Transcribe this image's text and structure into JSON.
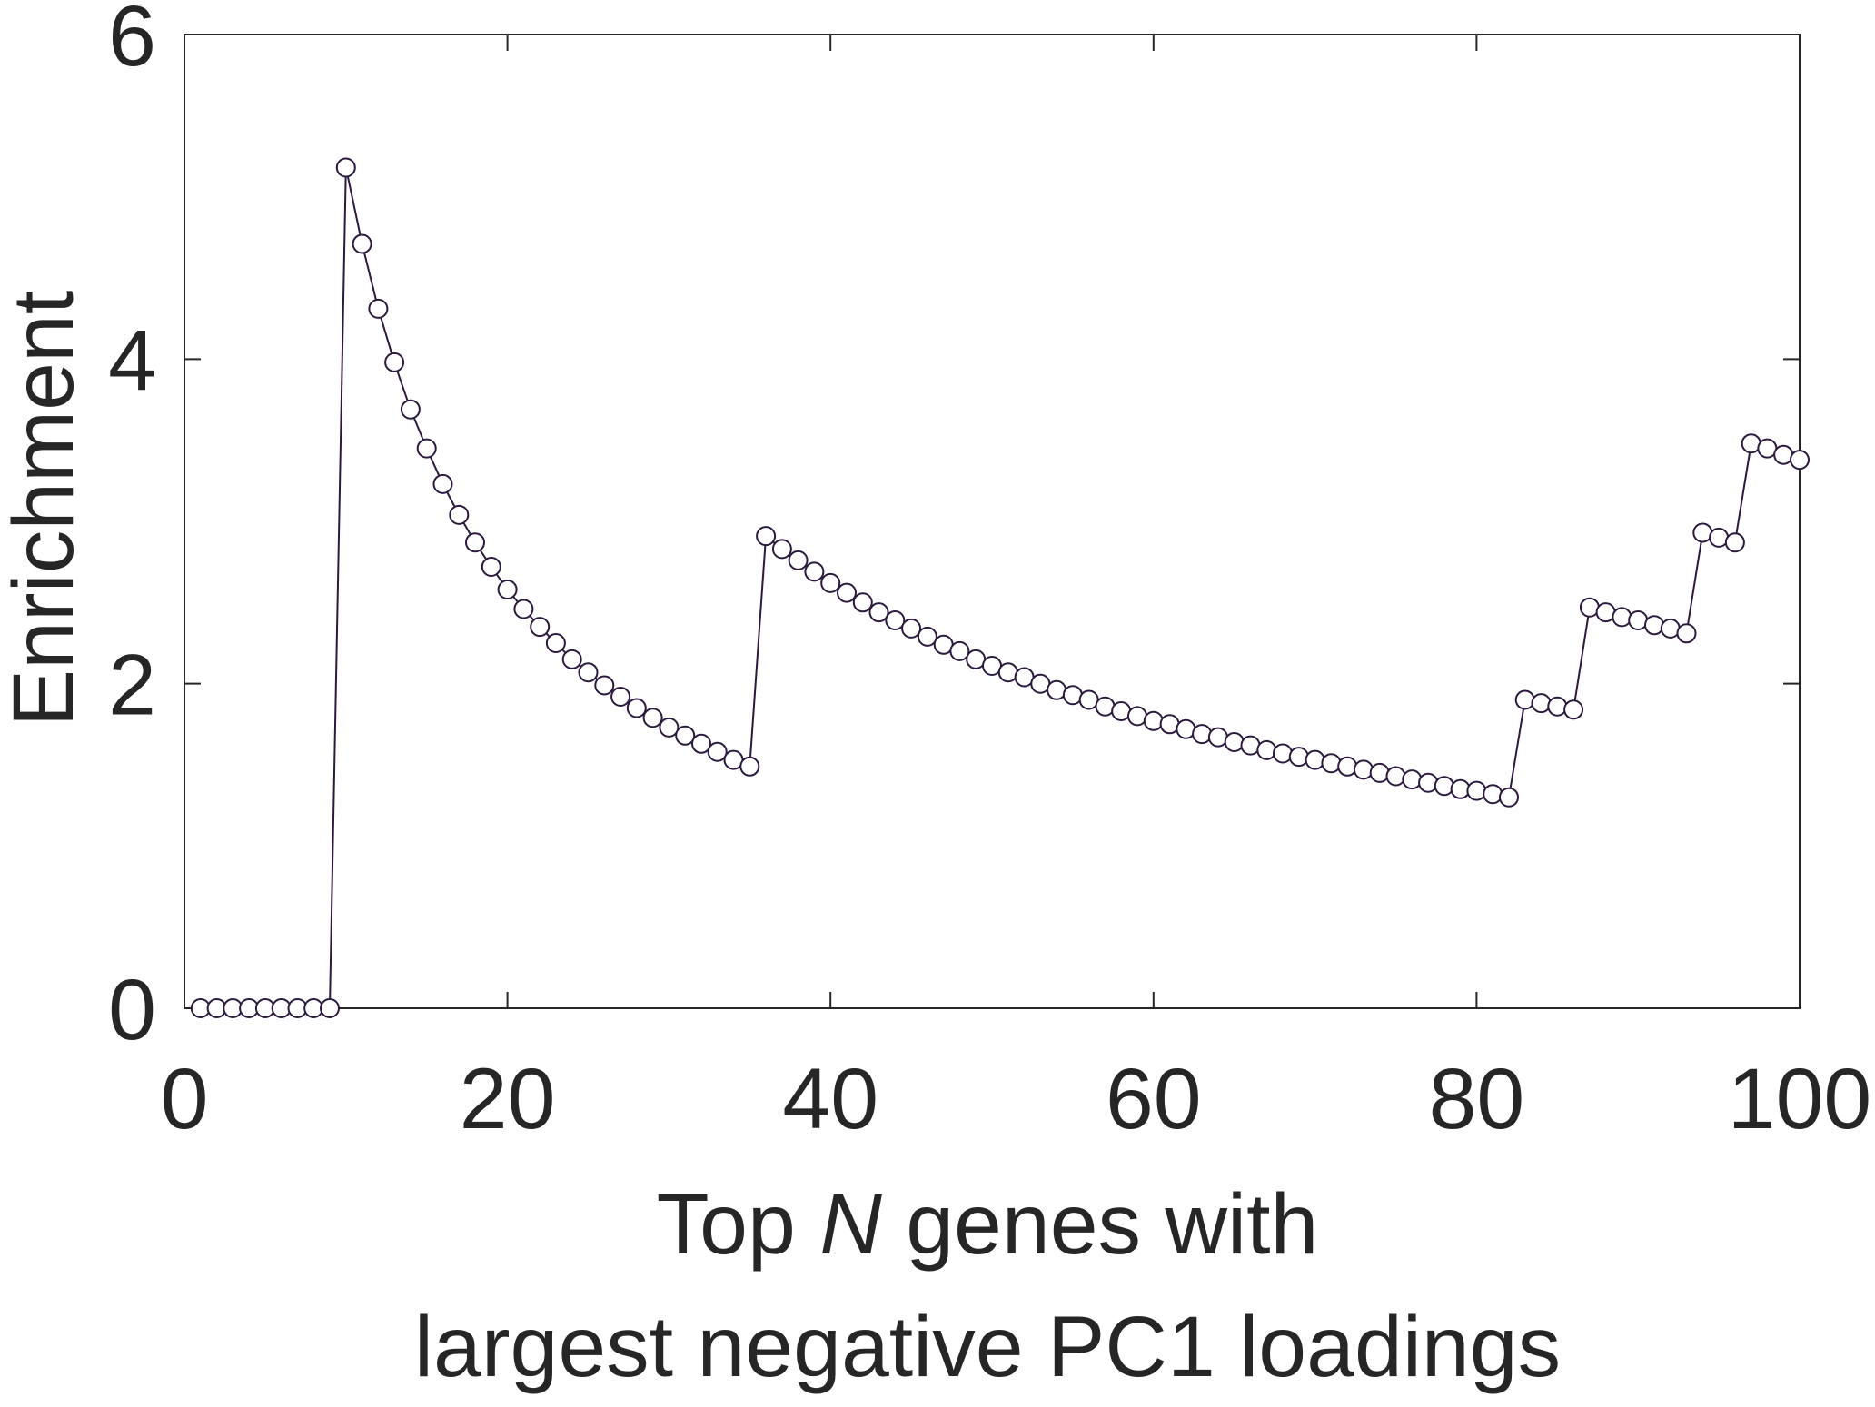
{
  "chart_data": {
    "type": "line",
    "xlabel_parts": [
      "Top ",
      "N",
      " genes with"
    ],
    "xlabel_line2": "largest negative PC1 loadings",
    "ylabel": "Enrichment",
    "xlim": [
      0,
      100
    ],
    "ylim": [
      0,
      6
    ],
    "xticks": [
      0,
      20,
      40,
      60,
      80,
      100
    ],
    "yticks": [
      0,
      2,
      4,
      6
    ],
    "grid": false,
    "legend": "none",
    "series": [
      {
        "color": "#2b1a3e",
        "marker_fill": "#ffffff",
        "x": [
          1,
          2,
          3,
          4,
          5,
          6,
          7,
          8,
          9,
          10,
          11,
          12,
          13,
          14,
          15,
          16,
          17,
          18,
          19,
          20,
          21,
          22,
          23,
          24,
          25,
          26,
          27,
          28,
          29,
          30,
          31,
          32,
          33,
          34,
          35,
          36,
          37,
          38,
          39,
          40,
          41,
          42,
          43,
          44,
          45,
          46,
          47,
          48,
          49,
          50,
          51,
          52,
          53,
          54,
          55,
          56,
          57,
          58,
          59,
          60,
          61,
          62,
          63,
          64,
          65,
          66,
          67,
          68,
          69,
          70,
          71,
          72,
          73,
          74,
          75,
          76,
          77,
          78,
          79,
          80,
          81,
          82,
          83,
          84,
          85,
          86,
          87,
          88,
          89,
          90,
          91,
          92,
          93,
          94,
          95,
          96,
          97,
          98,
          99,
          100
        ],
        "y": [
          0,
          0,
          0,
          0,
          0,
          0,
          0,
          0,
          0,
          5.18,
          4.71,
          4.31,
          3.98,
          3.69,
          3.45,
          3.23,
          3.04,
          2.87,
          2.72,
          2.58,
          2.46,
          2.35,
          2.25,
          2.15,
          2.07,
          1.99,
          1.92,
          1.85,
          1.79,
          1.73,
          1.68,
          1.63,
          1.58,
          1.53,
          1.49,
          2.91,
          2.83,
          2.76,
          2.69,
          2.62,
          2.56,
          2.5,
          2.44,
          2.39,
          2.34,
          2.29,
          2.24,
          2.2,
          2.15,
          2.11,
          2.07,
          2.04,
          2.0,
          1.96,
          1.93,
          1.9,
          1.86,
          1.83,
          1.8,
          1.77,
          1.75,
          1.72,
          1.69,
          1.67,
          1.64,
          1.62,
          1.59,
          1.57,
          1.55,
          1.53,
          1.51,
          1.49,
          1.47,
          1.45,
          1.43,
          1.41,
          1.39,
          1.37,
          1.35,
          1.34,
          1.32,
          1.3,
          1.9,
          1.88,
          1.86,
          1.84,
          2.47,
          2.44,
          2.41,
          2.39,
          2.36,
          2.34,
          2.31,
          2.93,
          2.9,
          2.87,
          3.48,
          3.45,
          3.41,
          3.38
        ]
      }
    ]
  }
}
